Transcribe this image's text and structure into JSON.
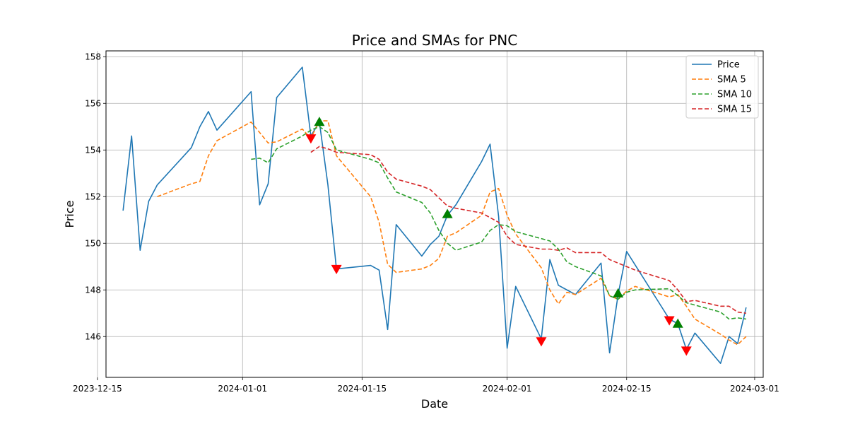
{
  "chart_data": {
    "type": "line",
    "title": "Price and SMAs for PNC",
    "xlabel": "Date",
    "ylabel": "Price",
    "xlim": [
      "2023-12-16",
      "2024-03-02"
    ],
    "ylim": [
      144.25,
      158.25
    ],
    "x_ticks": [
      "2023-12-15",
      "2024-01-01",
      "2024-01-15",
      "2024-02-01",
      "2024-02-15",
      "2024-03-01"
    ],
    "y_ticks": [
      146,
      148,
      150,
      152,
      154,
      156,
      158
    ],
    "grid": true,
    "legend_position": "top-right",
    "series": [
      {
        "name": "Price",
        "color": "#1f77b4",
        "style": "solid",
        "points": [
          [
            "2023-12-18",
            151.4
          ],
          [
            "2023-12-19",
            154.6
          ],
          [
            "2023-12-20",
            149.7
          ],
          [
            "2023-12-21",
            151.8
          ],
          [
            "2023-12-22",
            152.5
          ],
          [
            "2023-12-26",
            154.1
          ],
          [
            "2023-12-27",
            155.0
          ],
          [
            "2023-12-28",
            155.65
          ],
          [
            "2023-12-29",
            154.85
          ],
          [
            "2024-01-02",
            156.5
          ],
          [
            "2024-01-03",
            151.65
          ],
          [
            "2024-01-04",
            152.55
          ],
          [
            "2024-01-05",
            156.25
          ],
          [
            "2024-01-08",
            157.55
          ],
          [
            "2024-01-09",
            154.6
          ],
          [
            "2024-01-10",
            155.2
          ],
          [
            "2024-01-11",
            152.5
          ],
          [
            "2024-01-12",
            148.9
          ],
          [
            "2024-01-16",
            149.05
          ],
          [
            "2024-01-17",
            148.85
          ],
          [
            "2024-01-18",
            146.3
          ],
          [
            "2024-01-19",
            150.8
          ],
          [
            "2024-01-22",
            149.45
          ],
          [
            "2024-01-23",
            149.95
          ],
          [
            "2024-01-24",
            150.3
          ],
          [
            "2024-01-25",
            151.2
          ],
          [
            "2024-01-26",
            151.65
          ],
          [
            "2024-01-29",
            153.5
          ],
          [
            "2024-01-30",
            154.25
          ],
          [
            "2024-01-31",
            151.15
          ],
          [
            "2024-02-01",
            145.5
          ],
          [
            "2024-02-02",
            148.15
          ],
          [
            "2024-02-05",
            145.9
          ],
          [
            "2024-02-06",
            149.3
          ],
          [
            "2024-02-07",
            148.2
          ],
          [
            "2024-02-08",
            148.0
          ],
          [
            "2024-02-09",
            147.8
          ],
          [
            "2024-02-12",
            149.15
          ],
          [
            "2024-02-13",
            145.3
          ],
          [
            "2024-02-14",
            147.8
          ],
          [
            "2024-02-15",
            149.65
          ],
          [
            "2024-02-20",
            146.75
          ],
          [
            "2024-02-21",
            146.55
          ],
          [
            "2024-02-22",
            145.45
          ],
          [
            "2024-02-23",
            146.15
          ],
          [
            "2024-02-26",
            144.85
          ],
          [
            "2024-02-27",
            146.0
          ],
          [
            "2024-02-28",
            145.7
          ],
          [
            "2024-02-29",
            147.25
          ]
        ]
      },
      {
        "name": "SMA 5",
        "color": "#ff7f0e",
        "style": "dashed",
        "points": [
          [
            "2023-12-22",
            152.0
          ],
          [
            "2023-12-26",
            152.55
          ],
          [
            "2023-12-27",
            152.65
          ],
          [
            "2023-12-28",
            153.75
          ],
          [
            "2023-12-29",
            154.4
          ],
          [
            "2024-01-02",
            155.2
          ],
          [
            "2024-01-03",
            154.75
          ],
          [
            "2024-01-04",
            154.3
          ],
          [
            "2024-01-05",
            154.35
          ],
          [
            "2024-01-08",
            154.9
          ],
          [
            "2024-01-09",
            154.5
          ],
          [
            "2024-01-10",
            155.25
          ],
          [
            "2024-01-11",
            155.25
          ],
          [
            "2024-01-12",
            153.75
          ],
          [
            "2024-01-16",
            152.0
          ],
          [
            "2024-01-17",
            150.9
          ],
          [
            "2024-01-18",
            149.1
          ],
          [
            "2024-01-19",
            148.75
          ],
          [
            "2024-01-22",
            148.9
          ],
          [
            "2024-01-23",
            149.05
          ],
          [
            "2024-01-24",
            149.35
          ],
          [
            "2024-01-25",
            150.3
          ],
          [
            "2024-01-26",
            150.45
          ],
          [
            "2024-01-29",
            151.2
          ],
          [
            "2024-01-30",
            152.2
          ],
          [
            "2024-01-31",
            152.35
          ],
          [
            "2024-02-01",
            151.2
          ],
          [
            "2024-02-02",
            150.4
          ],
          [
            "2024-02-05",
            148.95
          ],
          [
            "2024-02-06",
            148.0
          ],
          [
            "2024-02-07",
            147.4
          ],
          [
            "2024-02-08",
            147.9
          ],
          [
            "2024-02-09",
            147.8
          ],
          [
            "2024-02-12",
            148.5
          ],
          [
            "2024-02-13",
            147.75
          ],
          [
            "2024-02-14",
            147.6
          ],
          [
            "2024-02-15",
            147.95
          ],
          [
            "2024-02-16",
            148.15
          ],
          [
            "2024-02-20",
            147.7
          ],
          [
            "2024-02-21",
            147.8
          ],
          [
            "2024-02-22",
            147.3
          ],
          [
            "2024-02-23",
            146.75
          ],
          [
            "2024-02-26",
            146.1
          ],
          [
            "2024-02-27",
            145.85
          ],
          [
            "2024-02-28",
            145.65
          ],
          [
            "2024-02-29",
            146.0
          ]
        ]
      },
      {
        "name": "SMA 10",
        "color": "#2ca02c",
        "style": "dashed",
        "points": [
          [
            "2024-01-02",
            153.6
          ],
          [
            "2024-01-03",
            153.65
          ],
          [
            "2024-01-04",
            153.45
          ],
          [
            "2024-01-05",
            154.05
          ],
          [
            "2024-01-08",
            154.6
          ],
          [
            "2024-01-09",
            154.85
          ],
          [
            "2024-01-10",
            155.0
          ],
          [
            "2024-01-11",
            154.75
          ],
          [
            "2024-01-12",
            154.0
          ],
          [
            "2024-01-16",
            153.6
          ],
          [
            "2024-01-17",
            153.45
          ],
          [
            "2024-01-18",
            152.8
          ],
          [
            "2024-01-19",
            152.2
          ],
          [
            "2024-01-22",
            151.75
          ],
          [
            "2024-01-23",
            151.3
          ],
          [
            "2024-01-24",
            150.55
          ],
          [
            "2024-01-25",
            150.0
          ],
          [
            "2024-01-26",
            149.7
          ],
          [
            "2024-01-29",
            150.05
          ],
          [
            "2024-01-30",
            150.55
          ],
          [
            "2024-01-31",
            150.8
          ],
          [
            "2024-02-01",
            150.75
          ],
          [
            "2024-02-02",
            150.5
          ],
          [
            "2024-02-05",
            150.2
          ],
          [
            "2024-02-06",
            150.1
          ],
          [
            "2024-02-07",
            149.75
          ],
          [
            "2024-02-08",
            149.2
          ],
          [
            "2024-02-09",
            149.0
          ],
          [
            "2024-02-12",
            148.6
          ],
          [
            "2024-02-13",
            147.75
          ],
          [
            "2024-02-14",
            147.6
          ],
          [
            "2024-02-15",
            147.9
          ],
          [
            "2024-02-16",
            148.0
          ],
          [
            "2024-02-20",
            148.05
          ],
          [
            "2024-02-21",
            147.75
          ],
          [
            "2024-02-22",
            147.45
          ],
          [
            "2024-02-23",
            147.35
          ],
          [
            "2024-02-26",
            147.05
          ],
          [
            "2024-02-27",
            146.75
          ],
          [
            "2024-02-28",
            146.8
          ],
          [
            "2024-02-29",
            146.75
          ]
        ]
      },
      {
        "name": "SMA 15",
        "color": "#d62728",
        "style": "dashed",
        "points": [
          [
            "2024-01-09",
            153.9
          ],
          [
            "2024-01-10",
            154.15
          ],
          [
            "2024-01-11",
            154.05
          ],
          [
            "2024-01-12",
            153.9
          ],
          [
            "2024-01-16",
            153.8
          ],
          [
            "2024-01-17",
            153.6
          ],
          [
            "2024-01-18",
            153.05
          ],
          [
            "2024-01-19",
            152.75
          ],
          [
            "2024-01-22",
            152.45
          ],
          [
            "2024-01-23",
            152.3
          ],
          [
            "2024-01-24",
            151.95
          ],
          [
            "2024-01-25",
            151.6
          ],
          [
            "2024-01-26",
            151.5
          ],
          [
            "2024-01-29",
            151.3
          ],
          [
            "2024-01-30",
            151.1
          ],
          [
            "2024-01-31",
            150.9
          ],
          [
            "2024-02-01",
            150.3
          ],
          [
            "2024-02-02",
            149.95
          ],
          [
            "2024-02-05",
            149.75
          ],
          [
            "2024-02-06",
            149.75
          ],
          [
            "2024-02-07",
            149.7
          ],
          [
            "2024-02-08",
            149.8
          ],
          [
            "2024-02-09",
            149.6
          ],
          [
            "2024-02-12",
            149.6
          ],
          [
            "2024-02-13",
            149.3
          ],
          [
            "2024-02-14",
            149.15
          ],
          [
            "2024-02-15",
            149.0
          ],
          [
            "2024-02-16",
            148.85
          ],
          [
            "2024-02-20",
            148.4
          ],
          [
            "2024-02-21",
            148.0
          ],
          [
            "2024-02-22",
            147.5
          ],
          [
            "2024-02-23",
            147.55
          ],
          [
            "2024-02-26",
            147.3
          ],
          [
            "2024-02-27",
            147.3
          ],
          [
            "2024-02-28",
            147.05
          ],
          [
            "2024-02-29",
            147.0
          ]
        ]
      }
    ],
    "buy_signals": {
      "color": "#008000",
      "marker": "triangle-up",
      "points": [
        [
          "2024-01-10",
          155.2
        ],
        [
          "2024-01-25",
          151.25
        ],
        [
          "2024-02-14",
          147.85
        ],
        [
          "2024-02-21",
          146.55
        ]
      ]
    },
    "sell_signals": {
      "color": "#ff0000",
      "marker": "triangle-down",
      "points": [
        [
          "2024-01-09",
          154.5
        ],
        [
          "2024-01-12",
          148.9
        ],
        [
          "2024-02-05",
          145.8
        ],
        [
          "2024-02-20",
          146.7
        ],
        [
          "2024-02-22",
          145.4
        ]
      ]
    }
  }
}
